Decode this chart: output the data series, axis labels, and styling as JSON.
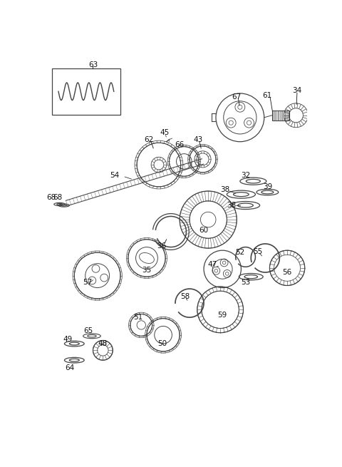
{
  "bg_color": "#ffffff",
  "line_color": "#444444",
  "text_color": "#111111",
  "fig_w": 4.8,
  "fig_h": 6.55,
  "dpi": 100
}
